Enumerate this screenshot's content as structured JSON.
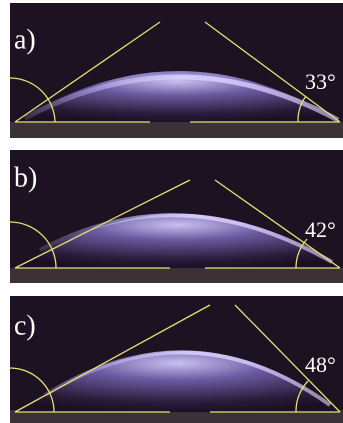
{
  "panels": [
    {
      "label": "a)",
      "angle": "33°"
    },
    {
      "label": "b)",
      "angle": "42°"
    },
    {
      "label": "c)",
      "angle": "48°"
    }
  ]
}
